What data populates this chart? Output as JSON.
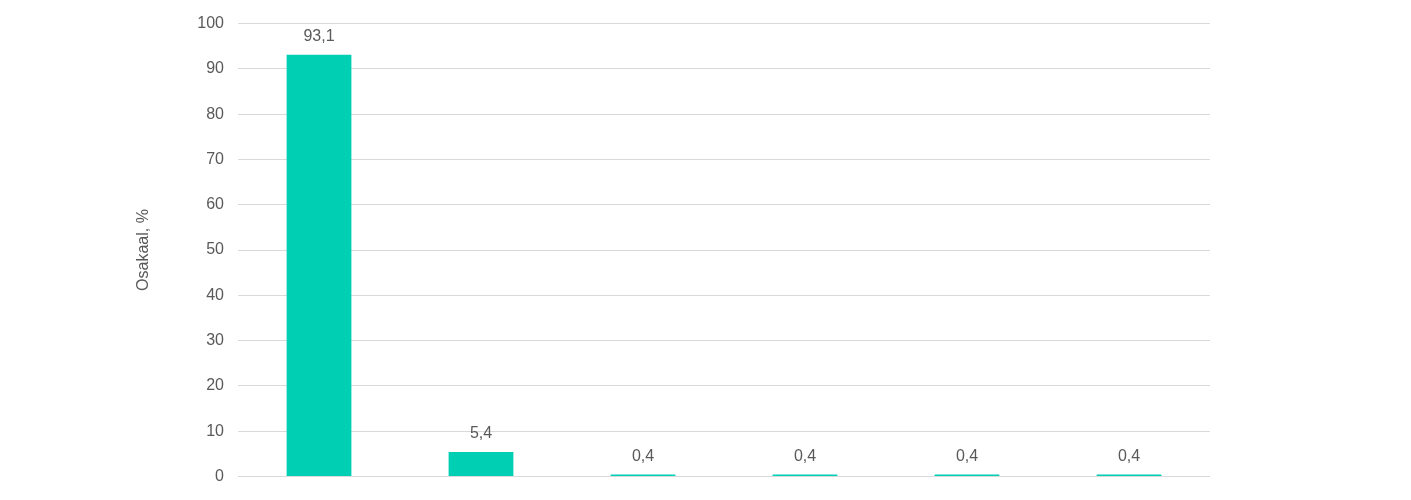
{
  "chart_data": {
    "type": "bar",
    "ylabel": "Osakaal, %",
    "categories": [
      null,
      null,
      null,
      null,
      null,
      null
    ],
    "values": [
      93.1,
      5.4,
      0.4,
      0.4,
      0.4,
      0.4
    ],
    "value_labels": [
      "93,1",
      "5,4",
      "0,4",
      "0,4",
      "0,4",
      "0,4"
    ],
    "color": "#00cfb4",
    "ylim": [
      0,
      100
    ],
    "yticks": [
      0,
      10,
      20,
      30,
      40,
      50,
      60,
      70,
      80,
      90,
      100
    ],
    "grid": "y",
    "legend": false
  }
}
